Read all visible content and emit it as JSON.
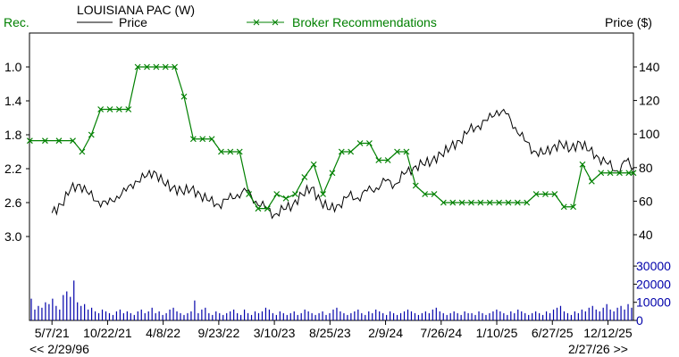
{
  "chart_data": {
    "type": "line",
    "title": "LOUISIANA PAC (W)",
    "legend": [
      {
        "name": "Price",
        "color": "#000000"
      },
      {
        "name": "Broker Recommendations",
        "color": "#008000",
        "marker": "x"
      }
    ],
    "left_axis": {
      "label": "Rec.",
      "ticks": [
        "1.0",
        "1.4",
        "1.8",
        "2.2",
        "2.6",
        "3.0"
      ],
      "range": [
        1.0,
        3.0
      ],
      "inverted": true
    },
    "right_axis": {
      "label": "Price ($)",
      "ticks": [
        "140",
        "120",
        "100",
        "80",
        "60",
        "40"
      ],
      "range": [
        40,
        140
      ]
    },
    "volume_axis": {
      "ticks": [
        "30000",
        "20000",
        "10000",
        "0"
      ],
      "range": [
        0,
        30000
      ]
    },
    "x_tick_labels": [
      "5/7/21",
      "10/22/21",
      "4/8/22",
      "9/23/22",
      "3/10/23",
      "8/25/23",
      "2/9/24",
      "7/26/24",
      "1/10/25",
      "6/27/25",
      "12/12/25"
    ],
    "x_range_labels": {
      "start": "<< 2/29/96",
      "end": "2/27/26 >>"
    },
    "series": [
      {
        "name": "Price",
        "x": [
          "5/7/21",
          "6/4/21",
          "7/2/21",
          "7/30/21",
          "8/27/21",
          "9/24/21",
          "10/22/21",
          "11/19/21",
          "12/17/21",
          "1/14/22",
          "2/11/22",
          "3/11/22",
          "4/8/22",
          "5/6/22",
          "6/3/22",
          "7/1/22",
          "7/29/22",
          "8/26/22",
          "9/23/22",
          "10/21/22",
          "11/18/22",
          "12/16/22",
          "1/13/23",
          "2/10/23",
          "3/10/23",
          "4/7/23",
          "5/5/23",
          "6/2/23",
          "6/30/23",
          "7/28/23",
          "8/25/23",
          "9/22/23",
          "10/20/23",
          "11/17/23",
          "12/15/23",
          "1/12/24",
          "2/9/24",
          "3/8/24",
          "4/5/24",
          "5/3/24",
          "5/31/24",
          "6/28/24",
          "7/26/24",
          "8/23/24",
          "9/20/24",
          "10/18/24",
          "11/15/24",
          "12/13/24",
          "1/10/25",
          "2/7/25",
          "3/7/25",
          "4/4/25",
          "5/2/25",
          "5/30/25",
          "6/27/25",
          "7/25/25",
          "8/22/25",
          "9/19/25",
          "10/17/25",
          "11/14/25",
          "12/12/25",
          "1/9/26",
          "2/6/26",
          "2/27/26"
        ],
        "values": [
          53,
          58,
          67,
          70,
          64,
          60,
          58,
          63,
          66,
          72,
          74,
          78,
          71,
          68,
          66,
          67,
          64,
          60,
          58,
          61,
          64,
          66,
          60,
          56,
          52,
          55,
          58,
          64,
          68,
          60,
          55,
          58,
          63,
          62,
          66,
          68,
          72,
          70,
          76,
          80,
          82,
          84,
          88,
          92,
          96,
          102,
          105,
          108,
          114,
          112,
          104,
          96,
          90,
          88,
          92,
          94,
          91,
          95,
          90,
          86,
          82,
          78,
          84,
          80
        ]
      },
      {
        "name": "Broker Recommendations",
        "x": [
          "2/29/21",
          "4/16/21",
          "5/28/21",
          "7/9/21",
          "8/6/21",
          "9/3/21",
          "10/1/21",
          "10/29/21",
          "11/26/21",
          "12/24/21",
          "1/21/22",
          "2/18/22",
          "3/18/22",
          "4/15/22",
          "5/13/22",
          "6/10/22",
          "7/8/22",
          "8/5/22",
          "9/2/22",
          "9/30/22",
          "10/28/22",
          "11/25/22",
          "12/23/22",
          "1/20/23",
          "2/17/23",
          "3/17/23",
          "4/14/23",
          "5/12/23",
          "6/9/23",
          "7/7/23",
          "8/4/23",
          "9/1/23",
          "9/29/23",
          "10/27/23",
          "11/24/23",
          "12/22/23",
          "1/19/24",
          "2/16/24",
          "3/15/24",
          "4/12/24",
          "5/10/24",
          "6/7/24",
          "7/5/24",
          "8/2/24",
          "8/30/24",
          "9/27/24",
          "10/25/24",
          "11/22/24",
          "12/20/24",
          "1/17/25",
          "2/14/25",
          "3/14/25",
          "4/11/25",
          "5/9/25",
          "6/6/25",
          "7/4/25",
          "8/1/25",
          "8/29/25",
          "9/26/25",
          "10/24/25",
          "11/21/25",
          "12/19/25",
          "1/16/26",
          "2/13/26",
          "2/27/26"
        ],
        "values": [
          1.87,
          1.87,
          1.87,
          1.87,
          2.0,
          1.8,
          1.5,
          1.5,
          1.5,
          1.5,
          1.0,
          1.0,
          1.0,
          1.0,
          1.0,
          1.35,
          1.85,
          1.85,
          1.85,
          2.0,
          2.0,
          2.0,
          2.5,
          2.67,
          2.67,
          2.5,
          2.55,
          2.5,
          2.3,
          2.15,
          2.5,
          2.25,
          2.0,
          2.0,
          1.9,
          1.9,
          2.1,
          2.1,
          2.0,
          2.0,
          2.4,
          2.5,
          2.5,
          2.6,
          2.6,
          2.6,
          2.6,
          2.6,
          2.6,
          2.6,
          2.6,
          2.6,
          2.6,
          2.5,
          2.5,
          2.5,
          2.65,
          2.65,
          2.15,
          2.35,
          2.25,
          2.25,
          2.25,
          2.25,
          2.25
        ]
      }
    ],
    "volume": [
      12,
      6,
      8,
      7,
      10,
      9,
      12,
      8,
      6,
      14,
      16,
      13,
      22,
      10,
      8,
      9,
      6,
      7,
      5,
      4,
      6,
      5,
      4,
      3,
      5,
      6,
      4,
      5,
      4,
      3,
      5,
      6,
      4,
      5,
      7,
      4,
      5,
      3,
      4,
      6,
      7,
      5,
      4,
      3,
      4,
      5,
      11,
      4,
      6,
      7,
      4,
      3,
      5,
      4,
      3,
      4,
      5,
      6,
      4,
      3,
      6,
      4,
      3,
      5,
      4,
      5,
      7,
      6,
      4,
      3,
      5,
      4,
      3,
      4,
      5,
      3,
      4,
      6,
      5,
      4,
      3,
      4,
      5,
      3,
      4,
      6,
      7,
      5,
      4,
      3,
      4,
      5,
      6,
      4,
      3,
      5,
      4,
      6,
      5,
      4,
      3,
      5,
      4,
      3,
      4,
      5,
      6,
      5,
      4,
      3,
      4,
      5,
      4,
      6,
      7,
      5,
      4,
      3,
      4,
      5,
      4,
      3,
      5,
      4,
      4,
      3,
      5,
      4,
      3,
      4,
      5,
      6,
      5,
      4,
      3,
      5,
      4,
      6,
      5,
      4,
      3,
      4,
      5,
      4,
      3,
      5,
      4,
      6,
      7,
      8,
      5,
      4,
      3,
      5,
      4,
      6,
      5,
      7,
      8,
      6,
      5,
      7,
      9,
      6,
      5,
      7,
      8,
      6,
      9,
      7
    ]
  }
}
